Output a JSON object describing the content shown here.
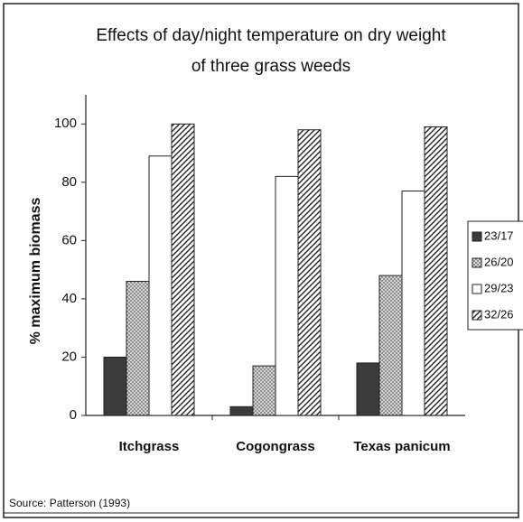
{
  "chart_data": {
    "type": "bar",
    "title": [
      "Effects of day/night temperature on dry weight",
      "of three grass weeds"
    ],
    "y_label": "% maximum biomass",
    "source": "Source: Patterson (1993)",
    "categories": [
      "Itchgrass",
      "Cogongrass",
      "Texas panicum"
    ],
    "series": [
      {
        "name": "23/17",
        "color": "#3c3c3c",
        "pattern": "solid",
        "values": [
          20,
          3,
          18
        ]
      },
      {
        "name": "26/20",
        "color": "#c8c8c8",
        "pattern": "dots",
        "values": [
          46,
          17,
          48
        ]
      },
      {
        "name": "29/23",
        "color": "#ffffff",
        "pattern": "solid",
        "values": [
          89,
          82,
          77
        ]
      },
      {
        "name": "32/26",
        "color": "#ffffff",
        "pattern": "diagonal",
        "values": [
          100,
          98,
          99
        ]
      }
    ],
    "ylim": [
      0,
      110
    ],
    "yticks": [
      0,
      20,
      40,
      60,
      80,
      100
    ],
    "grid": false,
    "legend": "right"
  }
}
